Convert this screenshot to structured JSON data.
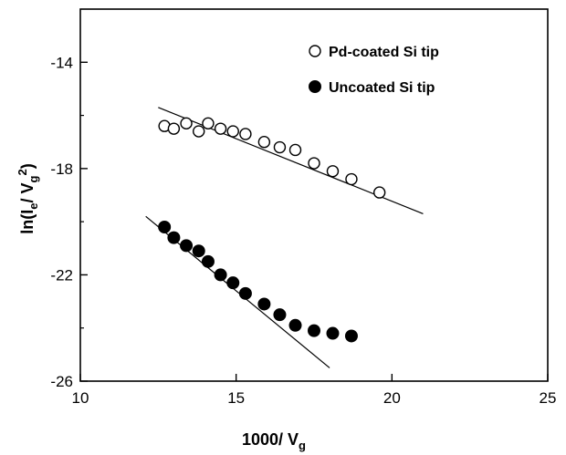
{
  "chart_data": {
    "type": "scatter",
    "title": "",
    "xlabel_main": "1000/ V",
    "xlabel_sub": "g",
    "ylabel_parts": [
      "ln(I",
      "e",
      "/ V",
      "g",
      "2",
      ")"
    ],
    "xlim": [
      10,
      25
    ],
    "ylim": [
      -26,
      -12
    ],
    "xticks": [
      10,
      15,
      20,
      25
    ],
    "yticks": [
      -26,
      -22,
      -18,
      -14
    ],
    "xtick_labels": [
      "10",
      "15",
      "20",
      "25"
    ],
    "ytick_labels": [
      "-26",
      "-22",
      "-18",
      "-14"
    ],
    "grid": false,
    "legend_position": "top-right",
    "series": [
      {
        "name": "Pd-coated Si tip",
        "marker": "open-circle",
        "x": [
          12.7,
          13.0,
          13.4,
          13.8,
          14.1,
          14.5,
          14.9,
          15.3,
          15.9,
          16.4,
          16.9,
          17.5,
          18.1,
          18.7,
          19.6
        ],
        "y": [
          -16.4,
          -16.5,
          -16.3,
          -16.6,
          -16.3,
          -16.5,
          -16.6,
          -16.7,
          -17.0,
          -17.2,
          -17.3,
          -17.8,
          -18.1,
          -18.4,
          -18.9
        ],
        "fit": {
          "x": [
            12.5,
            21.0
          ],
          "y": [
            -15.7,
            -19.7
          ]
        }
      },
      {
        "name": "Uncoated Si tip",
        "marker": "filled-circle",
        "x": [
          12.7,
          13.0,
          13.4,
          13.8,
          14.1,
          14.5,
          14.9,
          15.3,
          15.9,
          16.4,
          16.9,
          17.5,
          18.1,
          18.7
        ],
        "y": [
          -20.2,
          -20.6,
          -20.9,
          -21.1,
          -21.5,
          -22.0,
          -22.3,
          -22.7,
          -23.1,
          -23.5,
          -23.9,
          -24.1,
          -24.2,
          -24.3
        ],
        "fit": {
          "x": [
            12.1,
            18.0
          ],
          "y": [
            -19.8,
            -25.5
          ]
        }
      }
    ]
  }
}
